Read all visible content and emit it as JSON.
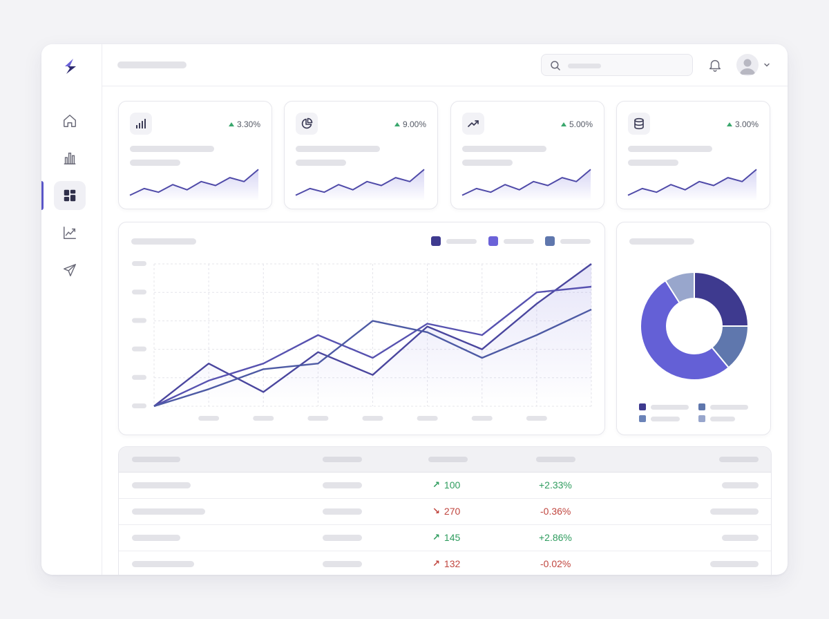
{
  "colors": {
    "accent": "#5a56c8",
    "series_dark": "#3e3a8f",
    "series_mid": "#6b62d8",
    "series_slate": "#5f77ad",
    "positive": "#2e9c5e",
    "negative": "#c0453e"
  },
  "sidebar": {
    "items": [
      {
        "icon": "home-icon",
        "active": false
      },
      {
        "icon": "bar-chart-icon",
        "active": false
      },
      {
        "icon": "dashboard-grid-icon",
        "active": true
      },
      {
        "icon": "trend-line-icon",
        "active": false
      },
      {
        "icon": "send-icon",
        "active": false
      }
    ]
  },
  "header": {
    "search_placeholder": "",
    "icons": [
      "search-icon",
      "bell-icon",
      "user-avatar-icon",
      "chevron-down-icon"
    ]
  },
  "stats": [
    {
      "icon": "signal-bars-icon",
      "change": "3.30%",
      "trend": "up"
    },
    {
      "icon": "pie-chart-icon",
      "change": "9.00%",
      "trend": "up"
    },
    {
      "icon": "trending-up-icon",
      "change": "5.00%",
      "trend": "up"
    },
    {
      "icon": "database-icon",
      "change": "3.00%",
      "trend": "up"
    }
  ],
  "chart_data": [
    {
      "type": "line",
      "title": "",
      "xlabel": "",
      "ylabel": "",
      "x": [
        0,
        1,
        2,
        3,
        4,
        5,
        6,
        7,
        8
      ],
      "ylim": [
        0,
        5
      ],
      "grid": true,
      "legend": "top-right",
      "series": [
        {
          "values": [
            0,
            1.5,
            0.5,
            1.9,
            1.1,
            2.8,
            2.0,
            3.6,
            5.0
          ]
        },
        {
          "values": [
            0,
            0.9,
            1.5,
            2.5,
            1.7,
            2.9,
            2.5,
            4.0,
            4.2
          ]
        },
        {
          "values": [
            0,
            0.6,
            1.3,
            1.5,
            3.0,
            2.6,
            1.7,
            2.5,
            3.4
          ]
        }
      ]
    },
    {
      "type": "pie",
      "title": "",
      "donut": true,
      "slices": [
        {
          "value": 25
        },
        {
          "value": 14
        },
        {
          "value": 52
        },
        {
          "value": 9
        }
      ]
    }
  ],
  "table": {
    "rows": [
      {
        "value": "100",
        "direction": "up",
        "change": "+2.33%",
        "status": "positive"
      },
      {
        "value": "270",
        "direction": "down",
        "change": "-0.36%",
        "status": "negative"
      },
      {
        "value": "145",
        "direction": "up",
        "change": "+2.86%",
        "status": "positive"
      },
      {
        "value": "132",
        "direction": "up",
        "change": "-0.02%",
        "status": "negative"
      }
    ]
  }
}
